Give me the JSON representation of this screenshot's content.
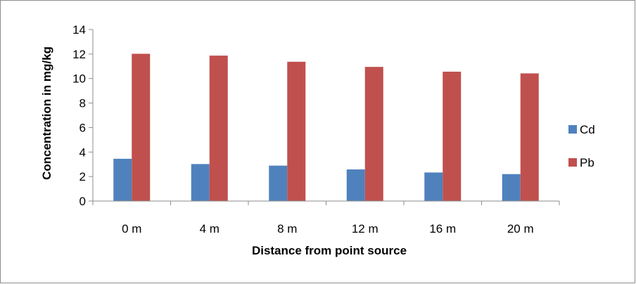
{
  "chart_data": {
    "type": "bar",
    "categories": [
      "0 m",
      "4 m",
      "8 m",
      "12 m",
      "16 m",
      "20 m"
    ],
    "series": [
      {
        "name": "Cd",
        "values": [
          3.45,
          3.02,
          2.89,
          2.58,
          2.33,
          2.2
        ],
        "color": "#4f81bd"
      },
      {
        "name": "Pb",
        "values": [
          12.02,
          11.87,
          11.37,
          10.95,
          10.56,
          10.42
        ],
        "color": "#c0504d"
      }
    ],
    "title": "",
    "xlabel": "Distance from point source",
    "ylabel": "Concentration in mg/kg",
    "ylim": [
      0,
      14
    ],
    "yticks": [
      0,
      2,
      4,
      6,
      8,
      10,
      12,
      14
    ],
    "grid": false,
    "legend_position": "right"
  }
}
